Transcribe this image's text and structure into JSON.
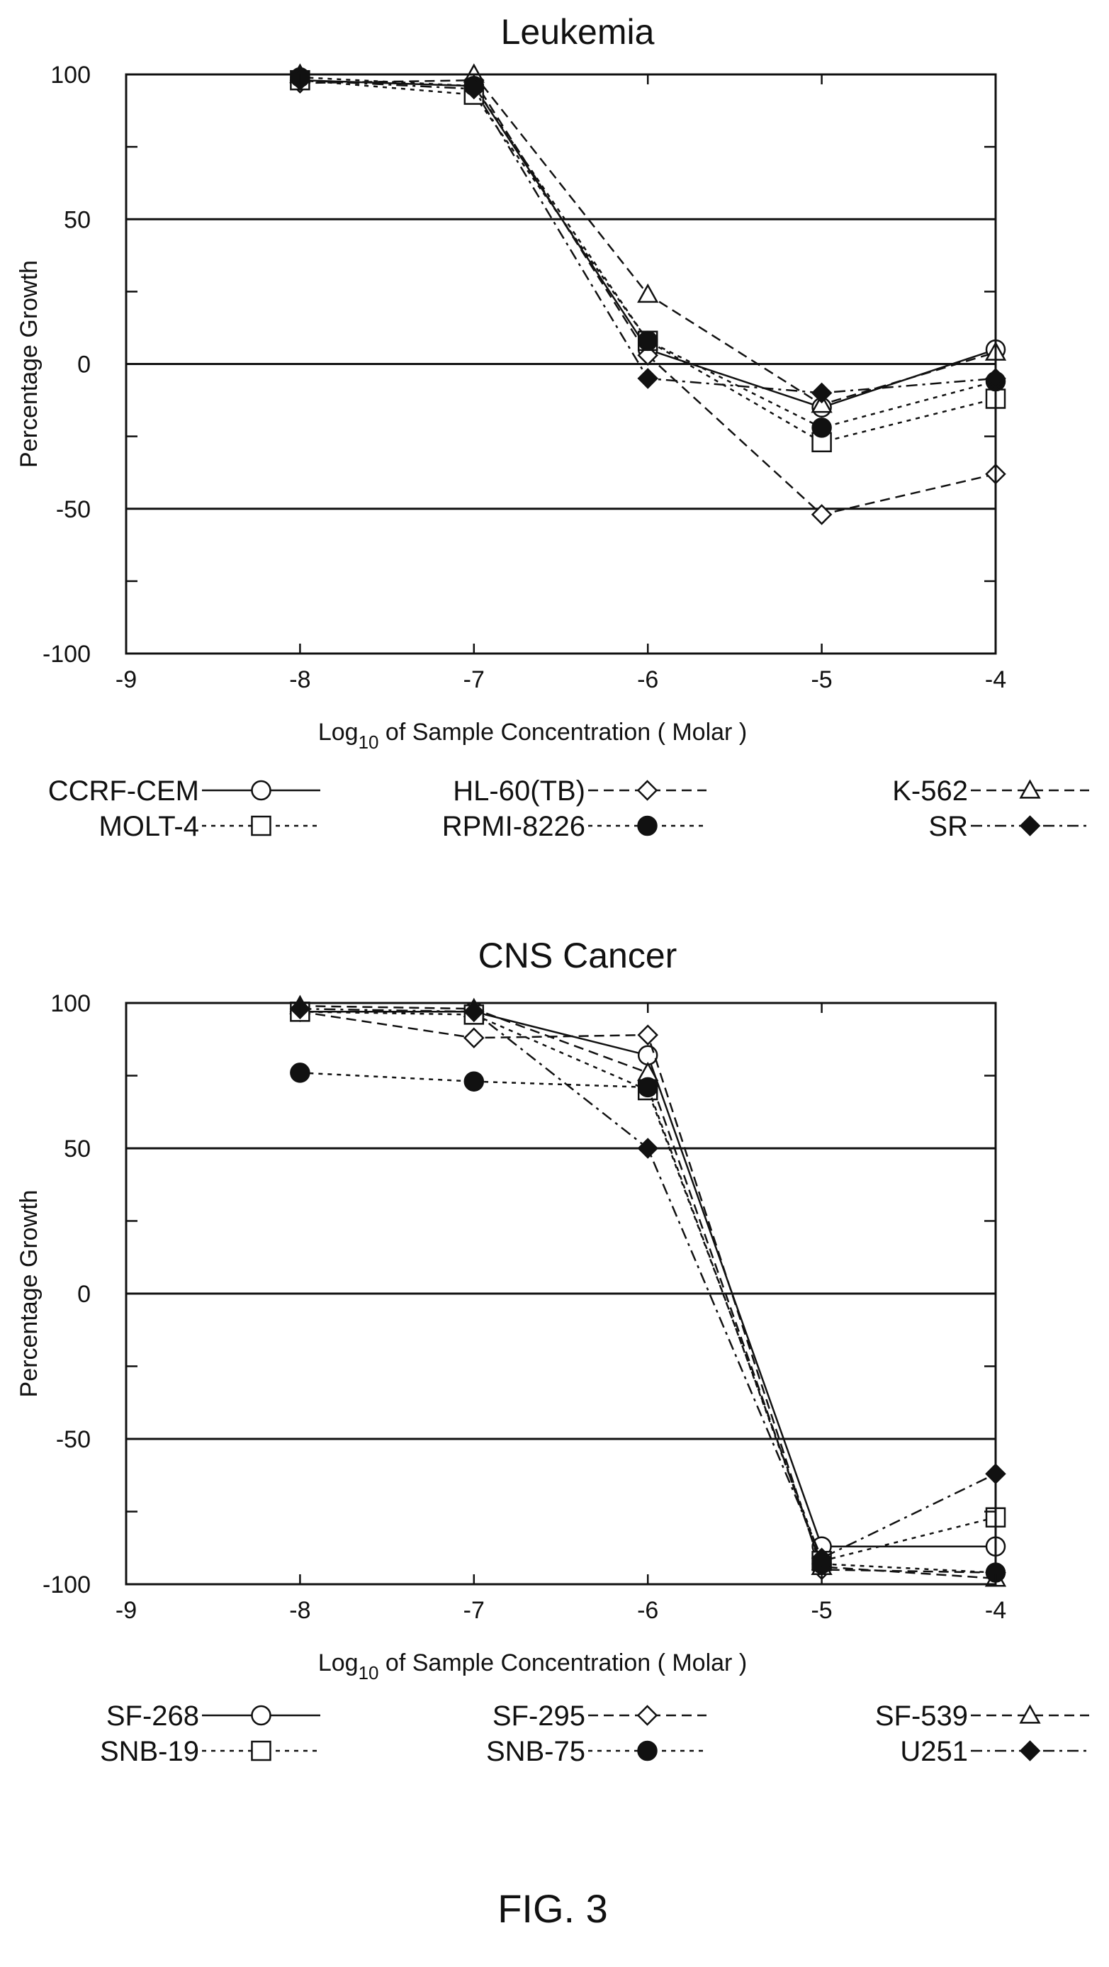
{
  "figure_label": "FIG. 3",
  "chart_data": [
    {
      "type": "line",
      "title": "Leukemia",
      "xlabel_main": "Log",
      "xlabel_sub": "10",
      "xlabel_rest": " of Sample Concentration ( Molar )",
      "ylabel": "Percentage Growth",
      "xlim": [
        -9,
        -4
      ],
      "ylim": [
        -100,
        100
      ],
      "x_ticks": [
        -9,
        -8,
        -7,
        -6,
        -5,
        -4
      ],
      "y_ticks": [
        100,
        50,
        0,
        -50,
        -100
      ],
      "reference_lines": [
        50,
        0,
        -50
      ],
      "x": [
        -8,
        -7,
        -6,
        -5,
        -4
      ],
      "series": [
        {
          "name": "CCRF-CEM",
          "marker": "circle",
          "dash": "solid",
          "values": [
            98,
            96,
            5,
            -15,
            5
          ]
        },
        {
          "name": "HL-60(TB)",
          "marker": "diamond",
          "dash": "dash",
          "values": [
            97,
            98,
            3,
            -52,
            -38
          ]
        },
        {
          "name": "K-562",
          "marker": "triangle",
          "dash": "dash",
          "values": [
            100,
            100,
            24,
            -14,
            4
          ]
        },
        {
          "name": "MOLT-4",
          "marker": "square",
          "dash": "dot",
          "values": [
            98,
            93,
            8,
            -27,
            -12
          ]
        },
        {
          "name": "RPMI-8226",
          "marker": "filled-circle",
          "dash": "dot",
          "values": [
            99,
            96,
            8,
            -22,
            -6
          ]
        },
        {
          "name": "SR",
          "marker": "filled-diamond",
          "dash": "dashdot",
          "values": [
            98,
            95,
            -5,
            -10,
            -5
          ]
        }
      ]
    },
    {
      "type": "line",
      "title": "CNS Cancer",
      "xlabel_main": "Log",
      "xlabel_sub": "10",
      "xlabel_rest": " of Sample Concentration ( Molar )",
      "ylabel": "Percentage Growth",
      "xlim": [
        -9,
        -4
      ],
      "ylim": [
        -100,
        100
      ],
      "x_ticks": [
        -9,
        -8,
        -7,
        -6,
        -5,
        -4
      ],
      "y_ticks": [
        100,
        50,
        0,
        -50,
        -100
      ],
      "reference_lines": [
        50,
        0,
        -50
      ],
      "x": [
        -8,
        -7,
        -6,
        -5,
        -4
      ],
      "series": [
        {
          "name": "SF-268",
          "marker": "circle",
          "dash": "solid",
          "values": [
            97,
            97,
            82,
            -87,
            -87
          ]
        },
        {
          "name": "SF-295",
          "marker": "diamond",
          "dash": "dash",
          "values": [
            97,
            88,
            89,
            -95,
            -96
          ]
        },
        {
          "name": "SF-539",
          "marker": "triangle",
          "dash": "dash",
          "values": [
            99,
            98,
            76,
            -94,
            -98
          ]
        },
        {
          "name": "SNB-19",
          "marker": "square",
          "dash": "dot",
          "values": [
            97,
            96,
            70,
            -92,
            -77
          ]
        },
        {
          "name": "SNB-75",
          "marker": "filled-circle",
          "dash": "dot",
          "values": [
            76,
            73,
            71,
            -93,
            -96
          ]
        },
        {
          "name": "U251",
          "marker": "filled-diamond",
          "dash": "dashdot",
          "values": [
            98,
            97,
            50,
            -91,
            -62
          ]
        }
      ]
    }
  ]
}
